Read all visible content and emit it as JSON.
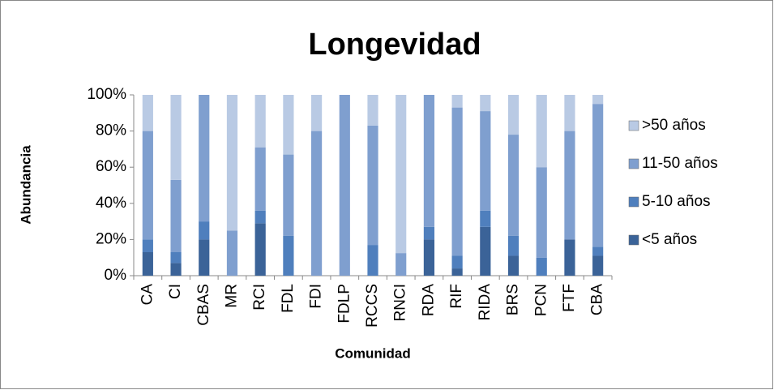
{
  "chart_data": {
    "type": "stacked_bar_100",
    "title": "Longevidad",
    "x_label": "Comunidad",
    "y_label": "Abundancia",
    "categories": [
      "CA",
      "CI",
      "CBAS",
      "MR",
      "RCI",
      "FDL",
      "FDI",
      "FDLP",
      "RCCS",
      "RNCI",
      "RDA",
      "RIF",
      "RIDA",
      "BRS",
      "PCN",
      "FTF",
      "CBA"
    ],
    "series": [
      {
        "name": "<5 años",
        "color": "#3b6398",
        "values": [
          13,
          7,
          20,
          0,
          29,
          0,
          0,
          0,
          0,
          0,
          20,
          4,
          27,
          11,
          0,
          20,
          11
        ]
      },
      {
        "name": "5-10 años",
        "color": "#4f7fbd",
        "values": [
          7,
          6,
          10,
          0,
          7,
          22,
          0,
          0,
          17,
          0,
          7,
          7,
          9,
          11,
          10,
          0,
          5
        ]
      },
      {
        "name": "11-50 años",
        "color": "#7f9fcf",
        "values": [
          60,
          40,
          70,
          25,
          35,
          45,
          80,
          100,
          66,
          12.5,
          73,
          82,
          55,
          56,
          50,
          60,
          79
        ]
      },
      {
        "name": ">50 años",
        "color": "#b9cae4",
        "values": [
          20,
          47,
          0,
          75,
          29,
          33,
          20,
          0,
          17,
          87.5,
          0,
          7,
          9,
          22,
          40,
          20,
          5
        ]
      }
    ],
    "ylim": [
      0,
      100
    ],
    "yticks": [
      {
        "value": 0,
        "label": "0%"
      },
      {
        "value": 20,
        "label": "20%"
      },
      {
        "value": 40,
        "label": "40%"
      },
      {
        "value": 60,
        "label": "60%"
      },
      {
        "value": 80,
        "label": "80%"
      },
      {
        "value": 100,
        "label": "100%"
      }
    ],
    "grid": false,
    "legend": "right"
  }
}
